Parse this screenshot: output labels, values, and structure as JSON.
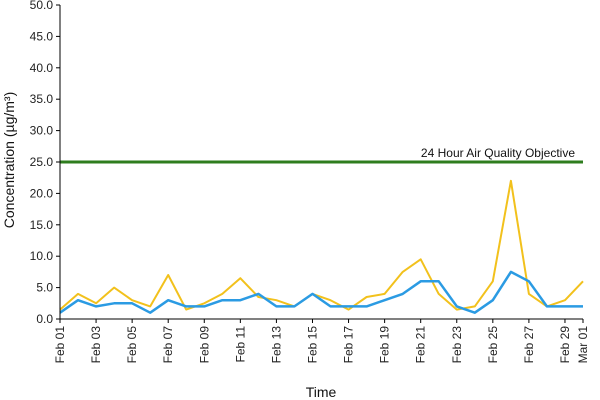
{
  "chart_data": {
    "type": "line",
    "xlabel": "Time",
    "ylabel": "Concentration (µg/m³)",
    "ylim": [
      0,
      50
    ],
    "x_range": [
      "Feb 01",
      "Mar 01"
    ],
    "y_ticks": [
      "0.0",
      "5.0",
      "10.0",
      "15.0",
      "20.0",
      "25.0",
      "30.0",
      "35.0",
      "40.0",
      "45.0",
      "50.0"
    ],
    "x_ticks": [
      "Feb 01",
      "Feb 03",
      "Feb 05",
      "Feb 07",
      "Feb 09",
      "Feb 11",
      "Feb 13",
      "Feb 15",
      "Feb 17",
      "Feb 19",
      "Feb 21",
      "Feb 23",
      "Feb 25",
      "Feb 27",
      "Feb 29",
      "Mar 01"
    ],
    "grid": false,
    "threshold": {
      "label": "24 Hour Air Quality Objective",
      "value": 25,
      "color": "#2e7d1e"
    },
    "series": [
      {
        "color": "#f2c11c",
        "x": [
          "Feb 01",
          "Feb 02",
          "Feb 03",
          "Feb 04",
          "Feb 05",
          "Feb 06",
          "Feb 07",
          "Feb 08",
          "Feb 09",
          "Feb 10",
          "Feb 11",
          "Feb 12",
          "Feb 13",
          "Feb 14",
          "Feb 15",
          "Feb 16",
          "Feb 17",
          "Feb 18",
          "Feb 19",
          "Feb 20",
          "Feb 21",
          "Feb 22",
          "Feb 23",
          "Feb 24",
          "Feb 25",
          "Feb 26",
          "Feb 27",
          "Feb 28",
          "Feb 29",
          "Mar 01"
        ],
        "values": [
          1.5,
          4.0,
          2.5,
          5.0,
          3.0,
          2.0,
          7.0,
          1.5,
          2.5,
          4.0,
          6.5,
          3.5,
          3.0,
          2.0,
          4.0,
          3.0,
          1.5,
          3.5,
          4.0,
          7.5,
          9.5,
          4.0,
          1.5,
          2.0,
          6.0,
          22.0,
          4.0,
          2.0,
          3.0,
          6.0
        ]
      },
      {
        "color": "#2b9be3",
        "x": [
          "Feb 01",
          "Feb 02",
          "Feb 03",
          "Feb 04",
          "Feb 05",
          "Feb 06",
          "Feb 07",
          "Feb 08",
          "Feb 09",
          "Feb 10",
          "Feb 11",
          "Feb 12",
          "Feb 13",
          "Feb 14",
          "Feb 15",
          "Feb 16",
          "Feb 17",
          "Feb 18",
          "Feb 19",
          "Feb 20",
          "Feb 21",
          "Feb 22",
          "Feb 23",
          "Feb 24",
          "Feb 25",
          "Feb 26",
          "Feb 27",
          "Feb 28",
          "Feb 29",
          "Mar 01"
        ],
        "values": [
          1.0,
          3.0,
          2.0,
          2.5,
          2.5,
          1.0,
          3.0,
          2.0,
          2.0,
          3.0,
          3.0,
          4.0,
          2.0,
          2.0,
          4.0,
          2.0,
          2.0,
          2.0,
          3.0,
          4.0,
          6.0,
          6.0,
          2.0,
          1.0,
          3.0,
          7.5,
          6.0,
          2.0,
          2.0,
          2.0
        ]
      }
    ]
  }
}
